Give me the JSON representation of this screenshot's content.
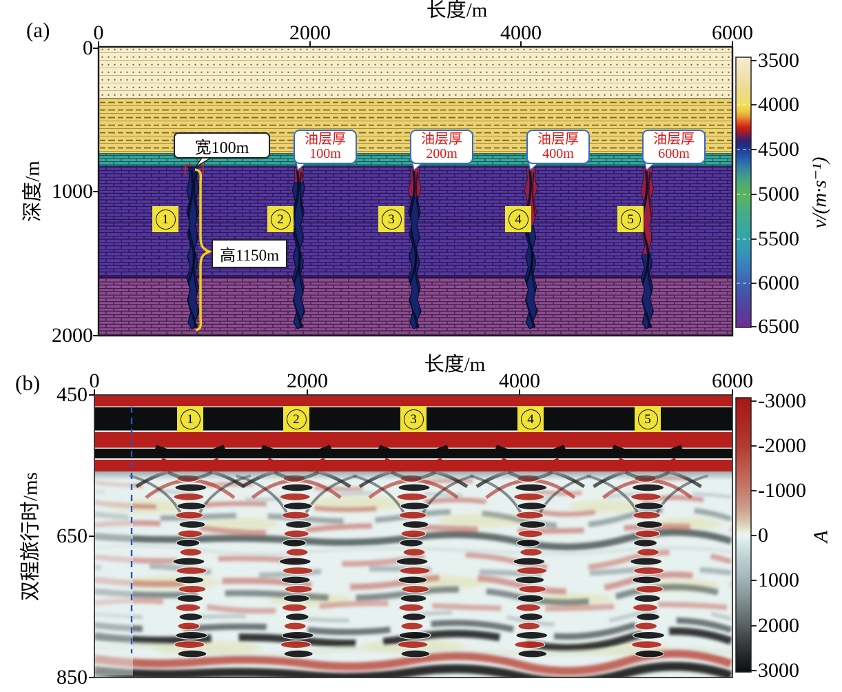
{
  "ui": {
    "panel_a": {
      "tag": "(a)",
      "x_axis": {
        "title": "长度/m",
        "ticks": [
          "0",
          "2000",
          "4000",
          "6000"
        ]
      },
      "y_axis": {
        "title": "深度/m",
        "ticks": [
          "0",
          "1000",
          "2000"
        ]
      },
      "colorbar": {
        "title": "v/(m·s⁻¹)",
        "ticks": [
          "3500",
          "4000",
          "4500",
          "5000",
          "5500",
          "6000",
          "6500"
        ]
      },
      "width_callout": "宽100m",
      "height_callout": "高1150m",
      "oil_callouts": [
        {
          "line1": "油层厚",
          "line2": "100m"
        },
        {
          "line1": "油层厚",
          "line2": "200m"
        },
        {
          "line1": "油层厚",
          "line2": "400m"
        },
        {
          "line1": "油层厚",
          "line2": "600m"
        }
      ],
      "badges": [
        "1",
        "2",
        "3",
        "4",
        "5"
      ]
    },
    "panel_b": {
      "tag": "(b)",
      "x_axis": {
        "title": "长度/m",
        "ticks": [
          "0",
          "2000",
          "4000",
          "6000"
        ]
      },
      "y_axis": {
        "title": "双程旅行时/ms",
        "ticks": [
          "450",
          "650",
          "850"
        ]
      },
      "colorbar": {
        "title": "A",
        "ticks": [
          "-3000",
          "-2000",
          "-1000",
          "0",
          "1000",
          "2000",
          "3000"
        ]
      },
      "badges": [
        "1",
        "2",
        "3",
        "4",
        "5"
      ]
    }
  },
  "colors": {
    "badge_bg": "#f0e236",
    "oil_text_red": "#e01818",
    "callout_border_blue": "#3a6cc0",
    "brace_yellow": "#f2cc1a",
    "dashed_line_blue": "#2255bb",
    "cave_body_blue": "#18246e",
    "cave_oil_red": "#9c1e40"
  },
  "chart_data": [
    {
      "type": "heatmap",
      "panel": "a",
      "title": "",
      "xlabel": "长度/m",
      "ylabel": "深度/m",
      "xlim": [
        0,
        6000
      ],
      "ylim": [
        2000,
        0
      ],
      "x_ticks": [
        0,
        2000,
        4000,
        6000
      ],
      "y_ticks": [
        0,
        1000,
        2000
      ],
      "colorbar": {
        "label": "v/(m·s⁻¹)",
        "ticks": [
          3500,
          4000,
          4500,
          5000,
          5500,
          6000,
          6500
        ],
        "range": [
          3500,
          6500
        ],
        "orientation": "vertical",
        "increases": "downward"
      },
      "layers": [
        {
          "texture": "dotted",
          "color": "#f6eecb",
          "depth_m": [
            0,
            360
          ]
        },
        {
          "texture": "dashed-lines",
          "color": "#edd271",
          "depth_m": [
            360,
            740
          ]
        },
        {
          "texture": "brick",
          "color": "#3aa79e",
          "depth_m": [
            740,
            830
          ]
        },
        {
          "texture": "brick",
          "color": "#5638a2",
          "depth_m": [
            830,
            1600
          ]
        },
        {
          "texture": "brick",
          "color": "#8e4d90",
          "depth_m": [
            1600,
            2000
          ]
        }
      ],
      "caves": [
        {
          "id": "1",
          "x_m": 900,
          "top_depth_m": 800,
          "height_m": 1150,
          "width_m": 100,
          "oil_thickness_m": 0,
          "width_label": "宽100m",
          "height_label": "高1150m"
        },
        {
          "id": "2",
          "x_m": 1900,
          "top_depth_m": 800,
          "height_m": 1150,
          "width_m": 100,
          "oil_thickness_m": 100,
          "oil_label": "油层厚 100m"
        },
        {
          "id": "3",
          "x_m": 3000,
          "top_depth_m": 800,
          "height_m": 1150,
          "width_m": 100,
          "oil_thickness_m": 200,
          "oil_label": "油层厚 200m"
        },
        {
          "id": "4",
          "x_m": 4100,
          "top_depth_m": 800,
          "height_m": 1150,
          "width_m": 100,
          "oil_thickness_m": 400,
          "oil_label": "油层厚 400m"
        },
        {
          "id": "5",
          "x_m": 5200,
          "top_depth_m": 800,
          "height_m": 1150,
          "width_m": 100,
          "oil_thickness_m": 600,
          "oil_label": "油层厚 600m"
        }
      ]
    },
    {
      "type": "heatmap",
      "panel": "b",
      "title": "",
      "xlabel": "长度/m",
      "ylabel": "双程旅行时/ms",
      "xlim": [
        0,
        6000
      ],
      "ylim": [
        850,
        450
      ],
      "x_ticks": [
        0,
        2000,
        4000,
        6000
      ],
      "y_ticks": [
        450,
        650,
        850
      ],
      "colorbar": {
        "label": "A",
        "ticks": [
          -3000,
          -2000,
          -1000,
          0,
          1000,
          2000,
          3000
        ],
        "range": [
          -3000,
          3000
        ],
        "orientation": "vertical"
      },
      "features": {
        "horizontal_reflectors_ms": [
          455,
          470,
          485,
          500,
          515
        ],
        "diffraction_zones_x_m": [
          900,
          1900,
          3000,
          4100,
          5200
        ],
        "badges": [
          "1",
          "2",
          "3",
          "4",
          "5"
        ],
        "dashed_line_x_m": 350
      }
    }
  ]
}
